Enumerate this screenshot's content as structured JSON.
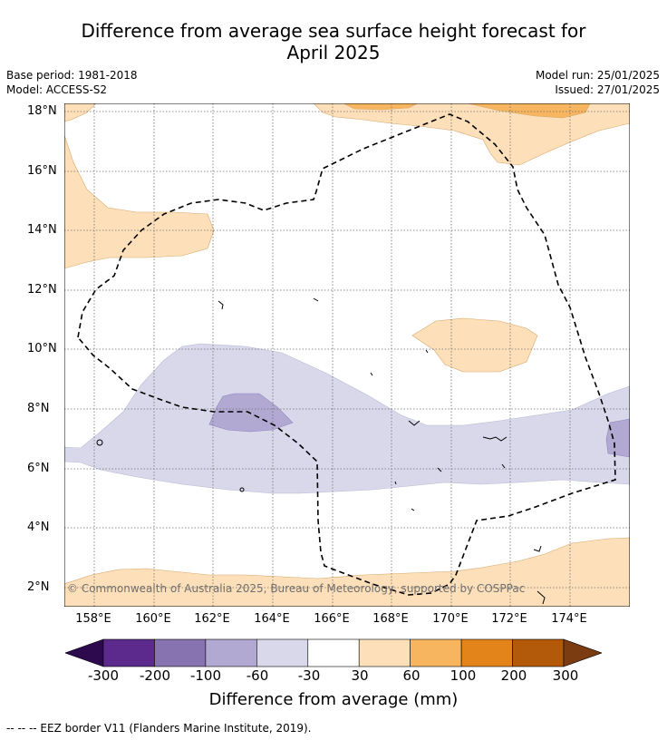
{
  "title_line1": "Difference from average sea surface height forecast for",
  "title_line2": "April 2025",
  "meta_left": [
    "Base period: 1981-2018",
    "Model: ACCESS-S2"
  ],
  "meta_right": [
    "Model run: 25/01/2025",
    "Issued: 27/01/2025"
  ],
  "lat_labels": [
    "18°N",
    "16°N",
    "14°N",
    "12°N",
    "10°N",
    "8°N",
    "6°N",
    "4°N",
    "2°N"
  ],
  "lon_labels": [
    "158°E",
    "160°E",
    "162°E",
    "164°E",
    "166°E",
    "168°E",
    "170°E",
    "172°E",
    "174°E"
  ],
  "copyright": "© Commonwealth of Australia 2025, Bureau of Meteorology, supported by COSPPac",
  "colorbar": {
    "ticks": [
      "-300",
      "-200",
      "-100",
      "-60",
      "-30",
      "30",
      "60",
      "100",
      "200",
      "300"
    ],
    "colors": [
      "#5b2a8c",
      "#8673b0",
      "#b2a9d2",
      "#d8d8ea",
      "#ffffff",
      "#fde0b9",
      "#f8b55f",
      "#e3841b",
      "#b2590a"
    ],
    "under_color": "#2d0a4e",
    "over_color": "#7a3c10",
    "label": "Difference from average (mm)"
  },
  "footnote": "--  --  -- EEZ border V11 (Flanders Marine Institute, 2019).",
  "map_colors": {
    "light_purple": "#d8d8ea",
    "mid_purple": "#b2a9d2",
    "light_orange": "#fde0b9",
    "mid_orange": "#f8b55f"
  }
}
